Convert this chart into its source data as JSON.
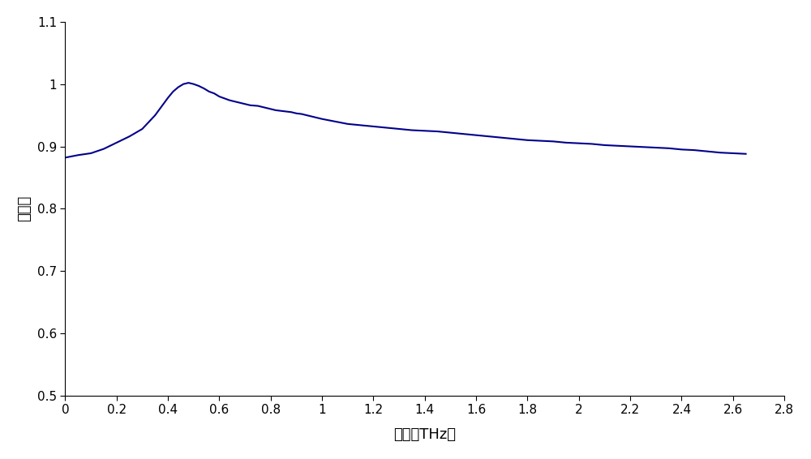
{
  "title": "",
  "xlabel": "频率（THz）",
  "ylabel": "透过率",
  "xlim": [
    0,
    2.8
  ],
  "ylim": [
    0.5,
    1.1
  ],
  "xticks": [
    0,
    0.2,
    0.4,
    0.6,
    0.8,
    1.0,
    1.2,
    1.4,
    1.6,
    1.8,
    2.0,
    2.2,
    2.4,
    2.6,
    2.8
  ],
  "yticks": [
    0.5,
    0.6,
    0.7,
    0.8,
    0.9,
    1.0,
    1.1
  ],
  "line_color": "#00008B",
  "line_width": 1.5,
  "background_color": "#ffffff",
  "x_data": [
    0.0,
    0.05,
    0.1,
    0.15,
    0.2,
    0.25,
    0.3,
    0.35,
    0.4,
    0.42,
    0.44,
    0.46,
    0.48,
    0.5,
    0.52,
    0.54,
    0.56,
    0.58,
    0.6,
    0.62,
    0.64,
    0.66,
    0.68,
    0.7,
    0.72,
    0.75,
    0.78,
    0.8,
    0.82,
    0.84,
    0.86,
    0.88,
    0.9,
    0.92,
    0.94,
    0.96,
    0.98,
    1.0,
    1.05,
    1.1,
    1.15,
    1.2,
    1.25,
    1.3,
    1.35,
    1.4,
    1.45,
    1.5,
    1.55,
    1.6,
    1.65,
    1.7,
    1.75,
    1.8,
    1.85,
    1.9,
    1.95,
    2.0,
    2.05,
    2.1,
    2.15,
    2.2,
    2.25,
    2.3,
    2.35,
    2.4,
    2.45,
    2.5,
    2.55,
    2.6,
    2.65
  ],
  "y_data": [
    0.882,
    0.886,
    0.889,
    0.896,
    0.906,
    0.916,
    0.928,
    0.95,
    0.978,
    0.988,
    0.995,
    1.0,
    1.002,
    1.0,
    0.997,
    0.993,
    0.988,
    0.985,
    0.98,
    0.977,
    0.974,
    0.972,
    0.97,
    0.968,
    0.966,
    0.965,
    0.962,
    0.96,
    0.958,
    0.957,
    0.956,
    0.955,
    0.953,
    0.952,
    0.95,
    0.948,
    0.946,
    0.944,
    0.94,
    0.936,
    0.934,
    0.932,
    0.93,
    0.928,
    0.926,
    0.925,
    0.924,
    0.922,
    0.92,
    0.918,
    0.916,
    0.914,
    0.912,
    0.91,
    0.909,
    0.908,
    0.906,
    0.905,
    0.904,
    0.902,
    0.901,
    0.9,
    0.899,
    0.898,
    0.897,
    0.895,
    0.894,
    0.892,
    0.89,
    0.889,
    0.888
  ]
}
